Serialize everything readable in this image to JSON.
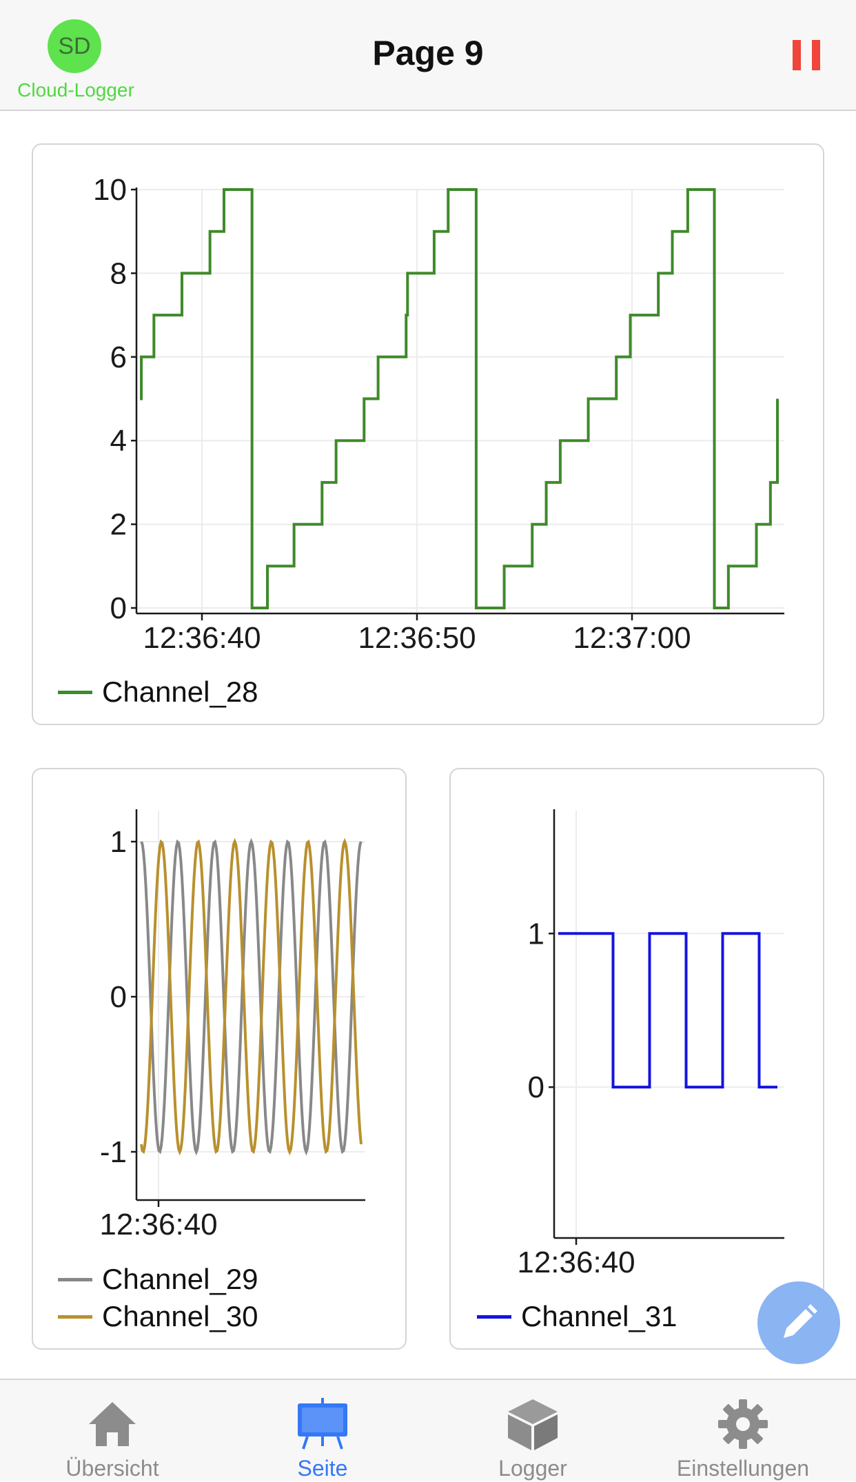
{
  "header": {
    "avatar_initials": "SD",
    "app_name": "Cloud-Logger",
    "title": "Page 9",
    "pause_icon": "pause-icon",
    "accent_color": "#f0453a"
  },
  "chart_data": [
    {
      "type": "line",
      "step": true,
      "x_tick_labels": [
        "12:36:40",
        "12:36:50",
        "12:37:00"
      ],
      "ylim": [
        0,
        10
      ],
      "y_ticks": [
        0,
        2,
        4,
        6,
        8,
        10
      ],
      "grid": true,
      "series": [
        {
          "name": "Channel_28",
          "color": "#3e8a2a",
          "x_seconds": [
            0,
            0.1,
            1,
            2,
            3,
            4,
            5,
            6,
            7,
            8,
            9,
            9.1,
            10,
            11,
            12,
            13,
            14,
            15,
            16,
            17,
            18,
            19,
            19.1,
            20,
            21,
            22,
            23,
            24,
            25,
            26,
            27,
            28,
            29,
            29.1,
            30,
            31,
            32,
            33,
            34,
            35,
            36,
            37,
            38,
            39,
            39.1,
            40,
            41,
            42,
            43,
            44,
            45,
            45.5
          ],
          "values": [
            5,
            6,
            7,
            7,
            8,
            8,
            9,
            10,
            10,
            0,
            0,
            1,
            1,
            2,
            2,
            3,
            4,
            4,
            5,
            6,
            6,
            7,
            8,
            8,
            9,
            10,
            10,
            0,
            0,
            1,
            1,
            2,
            3,
            3,
            4,
            4,
            5,
            5,
            6,
            7,
            7,
            8,
            9,
            9,
            10,
            10,
            0,
            1,
            1,
            2,
            3,
            5
          ]
        }
      ],
      "legend_position": "bottom-left"
    },
    {
      "type": "line",
      "x_tick_labels": [
        "12:36:40"
      ],
      "ylim": [
        -1.2,
        1.2
      ],
      "y_ticks": [
        -1,
        0,
        1
      ],
      "grid": true,
      "series": [
        {
          "name": "Channel_29",
          "color": "#888888",
          "shape": "sine",
          "amplitude": 1,
          "periods": 6
        },
        {
          "name": "Channel_30",
          "color": "#b8902e",
          "shape": "sine",
          "amplitude": 1,
          "periods": 6
        }
      ],
      "legend_position": "bottom-left"
    },
    {
      "type": "line",
      "step": true,
      "x_tick_labels": [
        "12:36:40"
      ],
      "ylim": [
        -1,
        1.8
      ],
      "y_ticks": [
        0,
        1
      ],
      "grid": true,
      "series": [
        {
          "name": "Channel_31",
          "color": "#1414e0",
          "x": [
            0,
            1,
            2,
            3,
            4,
            5,
            6,
            7,
            8,
            9,
            10,
            11,
            12
          ],
          "values": [
            1,
            1,
            1,
            0,
            0,
            1,
            1,
            0,
            0,
            1,
            1,
            0,
            0
          ]
        }
      ],
      "legend_position": "bottom-left"
    }
  ],
  "fab": {
    "icon": "pencil-icon",
    "color": "#8bb4f3"
  },
  "tabbar": {
    "tabs": [
      {
        "label": "Übersicht",
        "icon": "home-icon"
      },
      {
        "label": "Seite",
        "icon": "easel-icon",
        "active": true
      },
      {
        "label": "Logger",
        "icon": "cube-icon"
      },
      {
        "label": "Einstellungen",
        "icon": "gear-icon"
      }
    ]
  }
}
